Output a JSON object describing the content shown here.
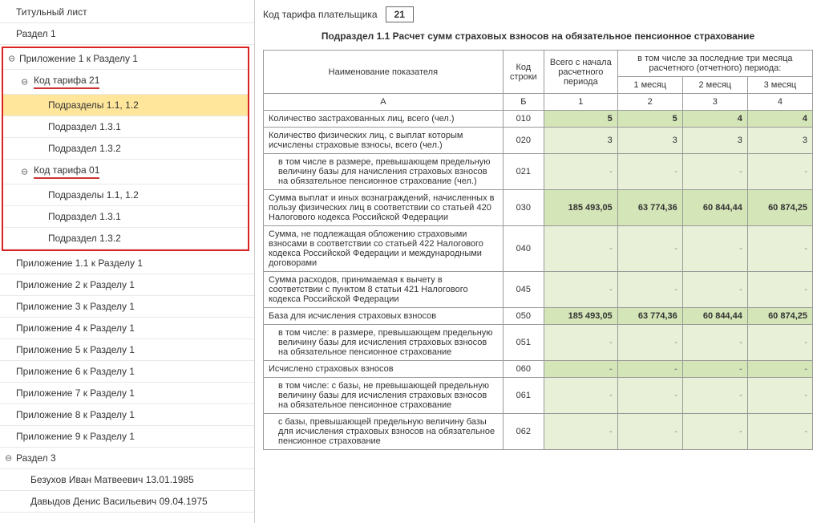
{
  "sidebar": {
    "items": [
      {
        "label": "Титульный лист",
        "indent": 0
      },
      {
        "label": "Раздел 1",
        "indent": 0
      },
      {
        "label": "Приложение 1 к Разделу 1",
        "indent": 0,
        "toggle": true,
        "redboxStart": true
      },
      {
        "label": "Код тарифа 21",
        "indent": 1,
        "toggle": true,
        "underline": true
      },
      {
        "label": "Подразделы 1.1, 1.2",
        "indent": 2,
        "selected": true
      },
      {
        "label": "Подраздел 1.3.1",
        "indent": 2
      },
      {
        "label": "Подраздел 1.3.2",
        "indent": 2
      },
      {
        "label": "Код тарифа 01",
        "indent": 1,
        "toggle": true,
        "underline": true
      },
      {
        "label": "Подразделы 1.1, 1.2",
        "indent": 2
      },
      {
        "label": "Подраздел 1.3.1",
        "indent": 2
      },
      {
        "label": "Подраздел 1.3.2",
        "indent": 2,
        "redboxEnd": true
      },
      {
        "label": "Приложение 1.1 к Разделу 1",
        "indent": 0
      },
      {
        "label": "Приложение 2 к Разделу 1",
        "indent": 0
      },
      {
        "label": "Приложение 3 к Разделу 1",
        "indent": 0
      },
      {
        "label": "Приложение 4 к Разделу 1",
        "indent": 0
      },
      {
        "label": "Приложение 5 к Разделу 1",
        "indent": 0
      },
      {
        "label": "Приложение 6 к Разделу 1",
        "indent": 0
      },
      {
        "label": "Приложение 7 к Разделу 1",
        "indent": 0
      },
      {
        "label": "Приложение 8 к Разделу 1",
        "indent": 0
      },
      {
        "label": "Приложение 9 к Разделу 1",
        "indent": 0
      },
      {
        "label": "Раздел 3",
        "indent": 0,
        "toggle": true
      },
      {
        "label": "Безухов Иван Матвеевич 13.01.1985",
        "indent": 1
      },
      {
        "label": "Давыдов Денис Васильевич 09.04.1975",
        "indent": 1
      }
    ]
  },
  "header": {
    "tariffLabel": "Код тарифа плательщика",
    "tariffValue": "21",
    "sectionTitle": "Подраздел 1.1 Расчет сумм страховых взносов на обязательное пенсионное страхование"
  },
  "tableHead": {
    "name": "Наименование показателя",
    "code": "Код строки",
    "total": "Всего с начала расчетного периода",
    "last3": "в том числе за последние три месяца расчетного (отчетного) периода:",
    "m1": "1 месяц",
    "m2": "2 месяц",
    "m3": "3 месяц",
    "sub": [
      "А",
      "Б",
      "1",
      "2",
      "3",
      "4"
    ]
  },
  "rows": [
    {
      "name": "Количество застрахованных лиц, всего (чел.)",
      "code": "010",
      "v": [
        "5",
        "5",
        "4",
        "4"
      ],
      "hl": true
    },
    {
      "name": "Количество физических лиц, с выплат которым исчислены страховые взносы, всего (чел.)",
      "code": "020",
      "v": [
        "3",
        "3",
        "3",
        "3"
      ]
    },
    {
      "name": "в том числе в размере, превышающем предельную величину базы для начисления страховых взносов на обязательное пенсионное страхование (чел.)",
      "code": "021",
      "v": [
        "-",
        "-",
        "-",
        "-"
      ],
      "indent": true
    },
    {
      "name": "Сумма выплат и иных вознаграждений, начисленных в пользу физических лиц в соответствии со статьей 420 Налогового кодекса Российской Федерации",
      "code": "030",
      "v": [
        "185 493,05",
        "63 774,36",
        "60 844,44",
        "60 874,25"
      ],
      "hl": true
    },
    {
      "name": "Сумма, не подлежащая обложению страховыми взносами в соответствии со статьей 422 Налогового кодекса Российской Федерации и международными договорами",
      "code": "040",
      "v": [
        "-",
        "-",
        "-",
        "-"
      ]
    },
    {
      "name": "Сумма расходов, принимаемая к вычету в соответствии с пунктом 8 статьи 421 Налогового кодекса Российской Федерации",
      "code": "045",
      "v": [
        "-",
        "-",
        "-",
        "-"
      ]
    },
    {
      "name": "База для исчисления страховых взносов",
      "code": "050",
      "v": [
        "185 493,05",
        "63 774,36",
        "60 844,44",
        "60 874,25"
      ],
      "hl": true
    },
    {
      "name": "в том числе:\nв размере, превышающем предельную величину базы для исчисления страховых взносов на обязательное пенсионное страхование",
      "code": "051",
      "v": [
        "-",
        "-",
        "-",
        "-"
      ],
      "indent": true
    },
    {
      "name": "Исчислено страховых взносов",
      "code": "060",
      "v": [
        "-",
        "-",
        "-",
        "-"
      ],
      "hl": true
    },
    {
      "name": "в том числе:\nс базы, не превышающей предельную величину базы для исчисления страховых взносов на обязательное пенсионное страхование",
      "code": "061",
      "v": [
        "-",
        "-",
        "-",
        "-"
      ],
      "indent": true
    },
    {
      "name": "с базы, превышающей предельную величину базы для исчисления страховых взносов на обязательное пенсионное страхование",
      "code": "062",
      "v": [
        "-",
        "-",
        "-",
        "-"
      ],
      "indent": true
    }
  ]
}
